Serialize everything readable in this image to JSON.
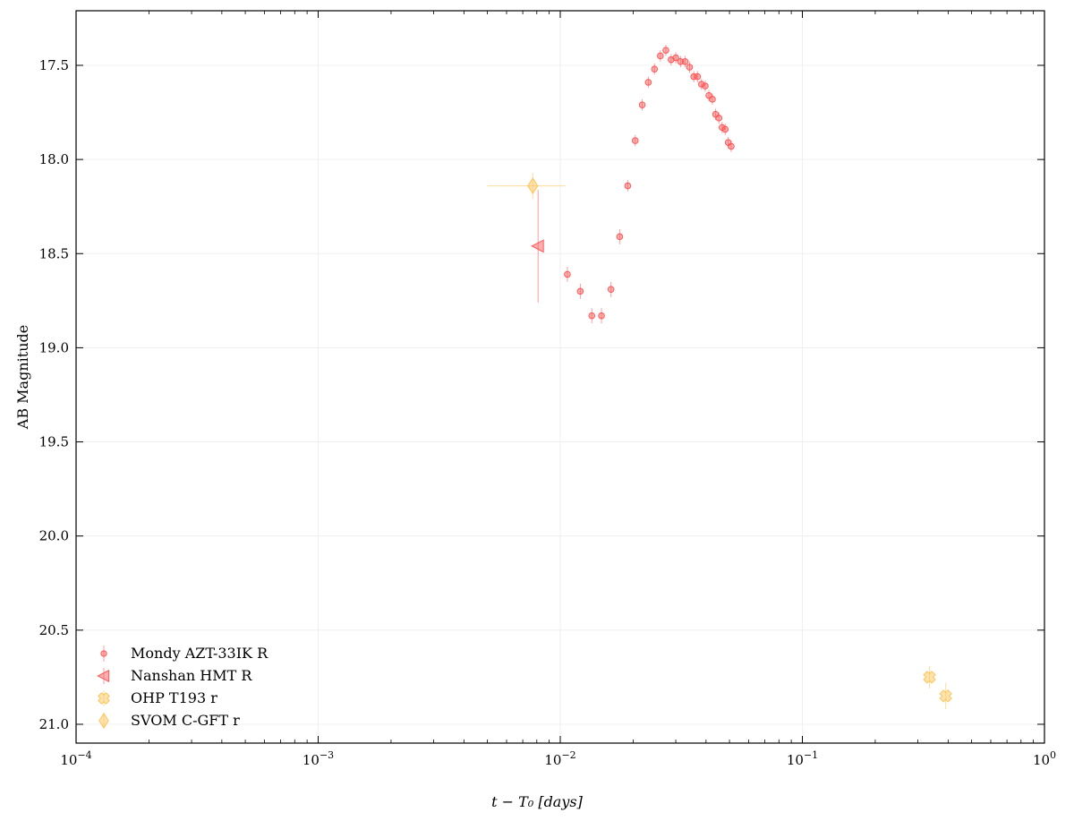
{
  "chart_data": {
    "type": "scatter",
    "title": "",
    "xlabel": "t − T₀ [days]",
    "ylabel": "AB Magnitude",
    "xscale": "log",
    "xlim": [
      0.0001,
      1
    ],
    "ylim": [
      21.1,
      17.21
    ],
    "y_inverted": true,
    "grid": true,
    "legend_position": "bottom-left",
    "x_tick_labels": [
      {
        "value": 0.0001,
        "base": "10",
        "exp": "−4"
      },
      {
        "value": 0.001,
        "base": "10",
        "exp": "−3"
      },
      {
        "value": 0.01,
        "base": "10",
        "exp": "−2"
      },
      {
        "value": 0.1,
        "base": "10",
        "exp": "−1"
      },
      {
        "value": 1,
        "base": "10",
        "exp": "0"
      }
    ],
    "y_ticks": [
      17.5,
      18.0,
      18.5,
      19.0,
      19.5,
      20.0,
      20.5,
      21.0
    ],
    "y_tick_labels": [
      "17.5",
      "18.0",
      "18.5",
      "19.0",
      "19.5",
      "20.0",
      "20.5",
      "21.0"
    ],
    "series": [
      {
        "name": "Mondy AZT-33IK R",
        "color": "#ff4d4d",
        "marker": "circle",
        "points": [
          {
            "x": 0.0107,
            "y": 18.61,
            "yerr": 0.04
          },
          {
            "x": 0.0121,
            "y": 18.7,
            "yerr": 0.04
          },
          {
            "x": 0.0135,
            "y": 18.83,
            "yerr": 0.04
          },
          {
            "x": 0.0148,
            "y": 18.83,
            "yerr": 0.04
          },
          {
            "x": 0.0162,
            "y": 18.69,
            "yerr": 0.04
          },
          {
            "x": 0.0176,
            "y": 18.41,
            "yerr": 0.04
          },
          {
            "x": 0.019,
            "y": 18.14,
            "yerr": 0.03
          },
          {
            "x": 0.0204,
            "y": 17.9,
            "yerr": 0.03
          },
          {
            "x": 0.0218,
            "y": 17.71,
            "yerr": 0.03
          },
          {
            "x": 0.0231,
            "y": 17.59,
            "yerr": 0.03
          },
          {
            "x": 0.0245,
            "y": 17.52,
            "yerr": 0.03
          },
          {
            "x": 0.0259,
            "y": 17.45,
            "yerr": 0.03
          },
          {
            "x": 0.0273,
            "y": 17.42,
            "yerr": 0.03
          },
          {
            "x": 0.0287,
            "y": 17.47,
            "yerr": 0.03
          },
          {
            "x": 0.03,
            "y": 17.46,
            "yerr": 0.03
          },
          {
            "x": 0.0314,
            "y": 17.48,
            "yerr": 0.03
          },
          {
            "x": 0.0328,
            "y": 17.48,
            "yerr": 0.03
          },
          {
            "x": 0.0342,
            "y": 17.51,
            "yerr": 0.03
          },
          {
            "x": 0.0356,
            "y": 17.56,
            "yerr": 0.03
          },
          {
            "x": 0.0369,
            "y": 17.56,
            "yerr": 0.03
          },
          {
            "x": 0.0383,
            "y": 17.6,
            "yerr": 0.03
          },
          {
            "x": 0.0397,
            "y": 17.61,
            "yerr": 0.03
          },
          {
            "x": 0.0411,
            "y": 17.66,
            "yerr": 0.03
          },
          {
            "x": 0.0425,
            "y": 17.68,
            "yerr": 0.03
          },
          {
            "x": 0.0438,
            "y": 17.76,
            "yerr": 0.03
          },
          {
            "x": 0.0452,
            "y": 17.78,
            "yerr": 0.03
          },
          {
            "x": 0.0466,
            "y": 17.83,
            "yerr": 0.03
          },
          {
            "x": 0.048,
            "y": 17.84,
            "yerr": 0.03
          },
          {
            "x": 0.0494,
            "y": 17.91,
            "yerr": 0.03
          },
          {
            "x": 0.0508,
            "y": 17.93,
            "yerr": 0.03
          }
        ]
      },
      {
        "name": "Nanshan HMT R",
        "color": "#ff4d4d",
        "marker": "triangle-left",
        "points": [
          {
            "x": 0.0081,
            "y": 18.46,
            "yerr": 0.3
          }
        ]
      },
      {
        "name": "OHP T193 r",
        "color": "#ffc04d",
        "marker": "x-filled",
        "points": [
          {
            "x": 0.335,
            "y": 20.75,
            "yerr": 0.06
          },
          {
            "x": 0.391,
            "y": 20.85,
            "yerr": 0.07
          }
        ]
      },
      {
        "name": "SVOM C-GFT r",
        "color": "#ffc04d",
        "marker": "thin-diamond",
        "points": [
          {
            "x": 0.0077,
            "y": 18.14,
            "yerr": 0.07,
            "xerr_low": 0.005,
            "xerr_high": 0.0105
          }
        ]
      }
    ]
  }
}
